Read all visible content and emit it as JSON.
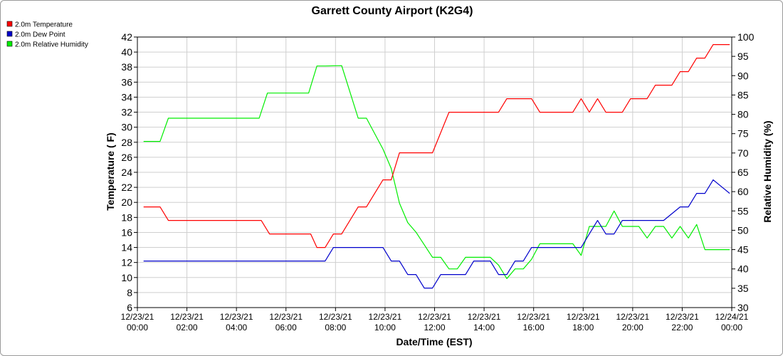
{
  "chart_data": {
    "type": "line",
    "title": "Garrett County Airport (K2G4)",
    "xlabel": "Date/Time (EST)",
    "ylabel_left": "Temperature ( F)",
    "ylabel_right": "Relative Humidity (%)",
    "ylim_left": [
      6,
      42
    ],
    "ylim_right": [
      30,
      100
    ],
    "xlim": [
      "12/23/21 00:00",
      "12/24/21 00:00"
    ],
    "grid": true,
    "legend_position": "top-left",
    "left_ticks": [
      "6",
      "8",
      "10",
      "12",
      "14",
      "16",
      "18",
      "20",
      "22",
      "24",
      "26",
      "28",
      "30",
      "32",
      "34",
      "36",
      "38",
      "40",
      "42"
    ],
    "right_ticks": [
      "30",
      "35",
      "40",
      "45",
      "50",
      "55",
      "60",
      "65",
      "70",
      "75",
      "80",
      "85",
      "90",
      "95",
      "100"
    ],
    "x_ticks": [
      {
        "date": "12/23/21",
        "time": "00:00"
      },
      {
        "date": "12/23/21",
        "time": "02:00"
      },
      {
        "date": "12/23/21",
        "time": "04:00"
      },
      {
        "date": "12/23/21",
        "time": "06:00"
      },
      {
        "date": "12/23/21",
        "time": "08:00"
      },
      {
        "date": "12/23/21",
        "time": "10:00"
      },
      {
        "date": "12/23/21",
        "time": "12:00"
      },
      {
        "date": "12/23/21",
        "time": "14:00"
      },
      {
        "date": "12/23/21",
        "time": "16:00"
      },
      {
        "date": "12/23/21",
        "time": "18:00"
      },
      {
        "date": "12/23/21",
        "time": "20:00"
      },
      {
        "date": "12/23/21",
        "time": "22:00"
      },
      {
        "date": "12/24/21",
        "time": "00:00"
      }
    ],
    "series": [
      {
        "name": "2.0m Temperature",
        "color": "#ff0000",
        "axis": "left",
        "x": [
          "12/23/21 00:15",
          "12/23/21 00:55",
          "12/23/21 01:15",
          "12/23/21 02:15",
          "12/23/21 03:15",
          "12/23/21 04:15",
          "12/23/21 05:00",
          "12/23/21 05:20",
          "12/23/21 06:15",
          "12/23/21 07:00",
          "12/23/21 07:15",
          "12/23/21 07:35",
          "12/23/21 07:55",
          "12/23/21 08:15",
          "12/23/21 08:55",
          "12/23/21 09:15",
          "12/23/21 09:55",
          "12/23/21 10:15",
          "12/23/21 10:35",
          "12/23/21 11:15",
          "12/23/21 11:55",
          "12/23/21 12:35",
          "12/23/21 13:15",
          "12/23/21 14:15",
          "12/23/21 14:35",
          "12/23/21 14:55",
          "12/23/21 15:15",
          "12/23/21 15:55",
          "12/23/21 16:15",
          "12/23/21 17:15",
          "12/23/21 17:35",
          "12/23/21 17:55",
          "12/23/21 18:15",
          "12/23/21 18:35",
          "12/23/21 18:55",
          "12/23/21 19:15",
          "12/23/21 19:35",
          "12/23/21 19:55",
          "12/23/21 20:15",
          "12/23/21 20:35",
          "12/23/21 20:55",
          "12/23/21 21:15",
          "12/23/21 21:35",
          "12/23/21 21:55",
          "12/23/21 22:15",
          "12/23/21 22:35",
          "12/23/21 22:55",
          "12/23/21 23:15",
          "12/23/21 23:35",
          "12/23/21 23:55"
        ],
        "values": [
          19.4,
          19.4,
          17.6,
          17.6,
          17.6,
          17.6,
          17.6,
          15.8,
          15.8,
          15.8,
          14.0,
          14.0,
          15.8,
          15.8,
          19.4,
          19.4,
          23.0,
          23.0,
          26.6,
          26.6,
          26.6,
          32.0,
          32.0,
          32.0,
          32.0,
          33.8,
          33.8,
          33.8,
          32.0,
          32.0,
          32.0,
          33.8,
          32.0,
          33.8,
          32.0,
          32.0,
          32.0,
          33.8,
          33.8,
          33.8,
          35.6,
          35.6,
          35.6,
          37.4,
          37.4,
          39.2,
          39.2,
          41.0,
          41.0,
          41.0
        ]
      },
      {
        "name": "2.0m Dew Point",
        "color": "#0000cc",
        "axis": "left",
        "x": [
          "12/23/21 00:15",
          "12/23/21 02:15",
          "12/23/21 04:15",
          "12/23/21 06:15",
          "12/23/21 07:35",
          "12/23/21 07:55",
          "12/23/21 08:55",
          "12/23/21 09:55",
          "12/23/21 10:15",
          "12/23/21 10:35",
          "12/23/21 10:55",
          "12/23/21 11:15",
          "12/23/21 11:35",
          "12/23/21 11:55",
          "12/23/21 12:15",
          "12/23/21 12:35",
          "12/23/21 13:15",
          "12/23/21 13:35",
          "12/23/21 14:15",
          "12/23/21 14:35",
          "12/23/21 14:55",
          "12/23/21 15:15",
          "12/23/21 15:35",
          "12/23/21 15:55",
          "12/23/21 16:15",
          "12/23/21 16:55",
          "12/23/21 17:55",
          "12/23/21 18:15",
          "12/23/21 18:35",
          "12/23/21 18:55",
          "12/23/21 19:15",
          "12/23/21 19:35",
          "12/23/21 19:55",
          "12/23/21 20:55",
          "12/23/21 21:15",
          "12/23/21 21:55",
          "12/23/21 22:15",
          "12/23/21 22:35",
          "12/23/21 22:55",
          "12/23/21 23:15",
          "12/23/21 23:55"
        ],
        "values": [
          12.2,
          12.2,
          12.2,
          12.2,
          12.2,
          14.0,
          14.0,
          14.0,
          12.2,
          12.2,
          10.4,
          10.4,
          8.6,
          8.6,
          10.4,
          10.4,
          10.4,
          12.2,
          12.2,
          10.4,
          10.4,
          12.2,
          12.2,
          14.0,
          14.0,
          14.0,
          14.0,
          15.8,
          17.6,
          15.8,
          15.8,
          17.6,
          17.6,
          17.6,
          17.6,
          19.4,
          19.4,
          21.2,
          21.2,
          23.0,
          21.2
        ]
      },
      {
        "name": "2.0m Relative Humidity",
        "color": "#00ee00",
        "axis": "right",
        "x": [
          "12/23/21 00:15",
          "12/23/21 00:55",
          "12/23/21 01:15",
          "12/23/21 02:15",
          "12/23/21 03:15",
          "12/23/21 04:15",
          "12/23/21 04:55",
          "12/23/21 05:15",
          "12/23/21 06:15",
          "12/23/21 06:55",
          "12/23/21 07:15",
          "12/23/21 07:35",
          "12/23/21 08:15",
          "12/23/21 08:55",
          "12/23/21 09:15",
          "12/23/21 09:55",
          "12/23/21 10:15",
          "12/23/21 10:35",
          "12/23/21 10:55",
          "12/23/21 11:15",
          "12/23/21 11:55",
          "12/23/21 12:15",
          "12/23/21 12:35",
          "12/23/21 12:55",
          "12/23/21 13:15",
          "12/23/21 13:35",
          "12/23/21 14:15",
          "12/23/21 14:35",
          "12/23/21 14:55",
          "12/23/21 15:15",
          "12/23/21 15:35",
          "12/23/21 15:55",
          "12/23/21 16:15",
          "12/23/21 16:55",
          "12/23/21 17:15",
          "12/23/21 17:35",
          "12/23/21 17:55",
          "12/23/21 18:15",
          "12/23/21 18:35",
          "12/23/21 18:55",
          "12/23/21 19:15",
          "12/23/21 19:35",
          "12/23/21 19:55",
          "12/23/21 20:15",
          "12/23/21 20:35",
          "12/23/21 20:55",
          "12/23/21 21:15",
          "12/23/21 21:35",
          "12/23/21 21:55",
          "12/23/21 22:15",
          "12/23/21 22:35",
          "12/23/21 22:55",
          "12/23/21 23:15",
          "12/23/21 23:35",
          "12/23/21 23:55"
        ],
        "values": [
          73,
          73,
          79,
          79,
          79,
          79,
          79,
          85.5,
          85.5,
          85.5,
          92.5,
          92.5,
          92.6,
          79,
          79,
          71,
          66,
          57,
          52,
          49.5,
          43,
          43,
          40,
          40,
          43,
          43,
          43,
          41,
          37.5,
          40,
          40,
          42.5,
          46.5,
          46.5,
          46.5,
          46.5,
          43.5,
          51,
          51,
          51,
          55,
          51,
          51,
          51,
          48,
          51,
          51,
          48,
          51,
          48,
          51.5,
          45,
          45,
          45,
          45
        ]
      }
    ]
  }
}
